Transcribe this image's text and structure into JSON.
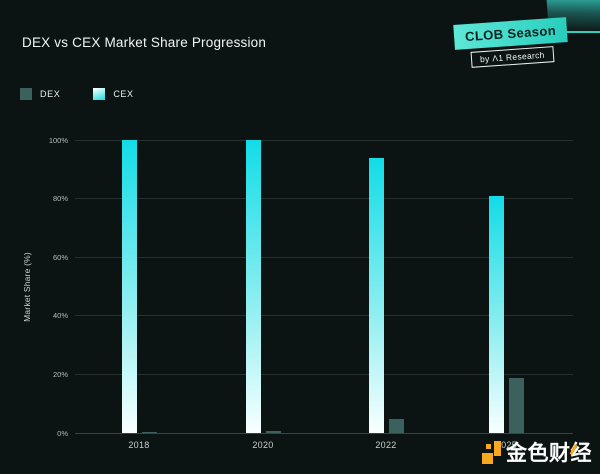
{
  "title": "DEX vs CEX Market Share Progression",
  "badge": {
    "label": "CLOB Season",
    "sub": "by Λ1 Research",
    "accent_color": "#2fd0c0"
  },
  "legend": [
    {
      "name": "DEX",
      "color": "#3b615e"
    },
    {
      "name": "CEX",
      "color_top": "#12dce7",
      "color_bottom": "#ffffff"
    }
  ],
  "watermark": {
    "text": "金色财经",
    "logo": "jinse-logo-icon",
    "accent_color": "#f7a81f"
  },
  "chart_data": {
    "type": "bar",
    "categories": [
      "2018",
      "2020",
      "2022",
      "2025"
    ],
    "series": [
      {
        "name": "DEX",
        "values": [
          0.3,
          0.7,
          4.8,
          18.7
        ]
      },
      {
        "name": "CEX",
        "values": [
          100,
          100,
          94,
          81
        ]
      }
    ],
    "title": "DEX vs CEX Market Share Progression",
    "xlabel": "",
    "ylabel": "Market Share (%)",
    "ylim": [
      0,
      100
    ],
    "yticks": [
      "0%",
      "20%",
      "40%",
      "60%",
      "80%",
      "100%"
    ],
    "grid": true,
    "legend_position": "top-left",
    "background_color": "#0c1413",
    "colors": {
      "dex": "#3b615e",
      "cex_gradient_top": "#12dce7",
      "cex_gradient_bottom": "#ffffff"
    }
  }
}
